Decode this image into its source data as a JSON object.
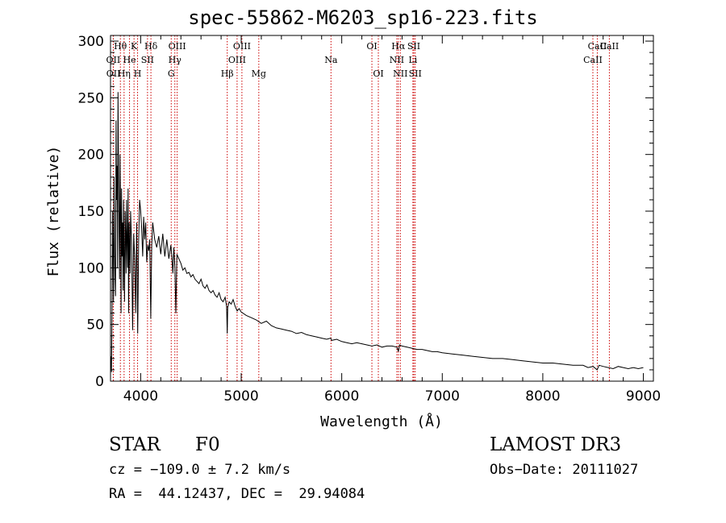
{
  "chart_data": {
    "type": "line",
    "title": "spec-55862-M6203_sp16-223.fits",
    "xlabel": "Wavelength (Å)",
    "ylabel": "Flux (relative)",
    "xlim": [
      3700,
      9100
    ],
    "ylim": [
      0,
      305
    ],
    "xticks": [
      4000,
      5000,
      6000,
      7000,
      8000,
      9000
    ],
    "yticks": [
      0,
      50,
      100,
      150,
      200,
      250,
      300
    ],
    "series": [
      {
        "name": "flux",
        "x": [
          3700,
          3705,
          3710,
          3715,
          3720,
          3725,
          3730,
          3735,
          3740,
          3745,
          3750,
          3755,
          3760,
          3765,
          3770,
          3775,
          3780,
          3785,
          3790,
          3795,
          3800,
          3805,
          3810,
          3815,
          3820,
          3825,
          3830,
          3835,
          3840,
          3845,
          3850,
          3855,
          3860,
          3865,
          3870,
          3875,
          3880,
          3885,
          3890,
          3895,
          3900,
          3910,
          3920,
          3930,
          3940,
          3950,
          3960,
          3970,
          3980,
          3990,
          4000,
          4010,
          4020,
          4030,
          4040,
          4050,
          4060,
          4070,
          4080,
          4090,
          4100,
          4110,
          4120,
          4140,
          4160,
          4180,
          4200,
          4220,
          4240,
          4260,
          4280,
          4300,
          4310,
          4320,
          4330,
          4340,
          4350,
          4360,
          4380,
          4400,
          4420,
          4440,
          4460,
          4480,
          4500,
          4520,
          4540,
          4560,
          4580,
          4600,
          4620,
          4640,
          4660,
          4680,
          4700,
          4720,
          4740,
          4760,
          4780,
          4800,
          4820,
          4840,
          4855,
          4861,
          4866,
          4880,
          4900,
          4920,
          4940,
          4960,
          4980,
          5000,
          5050,
          5100,
          5150,
          5200,
          5250,
          5300,
          5350,
          5400,
          5450,
          5500,
          5550,
          5600,
          5650,
          5700,
          5750,
          5800,
          5850,
          5890,
          5900,
          5950,
          6000,
          6050,
          6100,
          6150,
          6200,
          6250,
          6300,
          6350,
          6400,
          6450,
          6500,
          6550,
          6563,
          6575,
          6600,
          6650,
          6700,
          6750,
          6800,
          6850,
          6900,
          6950,
          7000,
          7100,
          7200,
          7300,
          7400,
          7500,
          7600,
          7700,
          7800,
          7900,
          8000,
          8100,
          8200,
          8300,
          8400,
          8450,
          8500,
          8540,
          8560,
          8600,
          8650,
          8700,
          8750,
          8800,
          8850,
          8900,
          8950,
          9000
        ],
        "values": [
          15,
          22,
          8,
          60,
          150,
          110,
          70,
          180,
          120,
          90,
          75,
          230,
          160,
          190,
          100,
          255,
          180,
          130,
          90,
          200,
          150,
          60,
          170,
          110,
          140,
          80,
          160,
          110,
          70,
          150,
          130,
          95,
          160,
          120,
          100,
          170,
          60,
          140,
          115,
          95,
          150,
          120,
          45,
          130,
          110,
          60,
          140,
          42,
          125,
          160,
          150,
          135,
          110,
          145,
          125,
          140,
          105,
          120,
          115,
          125,
          55,
          120,
          140,
          125,
          118,
          128,
          112,
          130,
          110,
          125,
          108,
          120,
          110,
          95,
          118,
          100,
          60,
          112,
          108,
          104,
          98,
          100,
          95,
          96,
          92,
          94,
          90,
          88,
          86,
          90,
          84,
          82,
          85,
          80,
          78,
          80,
          76,
          74,
          78,
          72,
          70,
          74,
          66,
          42,
          65,
          70,
          68,
          72,
          66,
          62,
          64,
          61,
          58,
          56,
          54,
          51,
          53,
          49,
          47,
          46,
          45,
          44,
          42,
          43,
          41,
          40,
          39,
          38,
          37,
          38,
          36,
          37,
          35,
          34,
          33,
          34,
          33,
          32,
          31,
          32,
          30,
          31,
          31,
          30,
          26,
          32,
          31,
          30,
          29,
          28,
          28,
          27,
          26,
          26,
          25,
          24,
          23,
          22,
          21,
          20,
          20,
          19,
          18,
          17,
          16,
          16,
          15,
          14,
          14,
          12,
          13,
          10,
          14,
          13,
          12,
          11,
          13,
          12,
          11,
          12,
          11,
          12
        ]
      }
    ],
    "line_labels": [
      {
        "name": "Hθ",
        "wavelength": 3798
      },
      {
        "name": "K",
        "wavelength": 3934
      },
      {
        "name": "Hδ",
        "wavelength": 4102
      },
      {
        "name": "OIII",
        "wavelength": 4363
      },
      {
        "name": "OIII",
        "wavelength": 5007
      },
      {
        "name": "OI",
        "wavelength": 6300
      },
      {
        "name": "Hα",
        "wavelength": 6563
      },
      {
        "name": "SII",
        "wavelength": 6717
      },
      {
        "name": "CaII",
        "wavelength": 8542
      },
      {
        "name": "OII",
        "wavelength": 3727
      },
      {
        "name": "He",
        "wavelength": 3889
      },
      {
        "name": "SII",
        "wavelength": 4068
      },
      {
        "name": "Hγ",
        "wavelength": 4340
      },
      {
        "name": "OIII",
        "wavelength": 4959
      },
      {
        "name": "Na",
        "wavelength": 5893
      },
      {
        "name": "NII",
        "wavelength": 6548
      },
      {
        "name": "Li",
        "wavelength": 6708
      },
      {
        "name": "CaII",
        "wavelength": 8498
      },
      {
        "name": "OII",
        "wavelength": 3729
      },
      {
        "name": "Hη",
        "wavelength": 3835
      },
      {
        "name": "H",
        "wavelength": 3969
      },
      {
        "name": "G",
        "wavelength": 4304
      },
      {
        "name": "Hβ",
        "wavelength": 4861
      },
      {
        "name": "Mg",
        "wavelength": 5175
      },
      {
        "name": "OI",
        "wavelength": 6364
      },
      {
        "name": "NII",
        "wavelength": 6583
      },
      {
        "name": "SII",
        "wavelength": 6731
      },
      {
        "name": "CaII",
        "wavelength": 8662
      }
    ]
  },
  "info": {
    "object_class": "STAR",
    "subclass": "F0",
    "survey": "LAMOST DR3",
    "cz": "cz = −109.0 ± 7.2 km/s",
    "obs_date": "Obs−Date: 20111027",
    "coords": "RA =  44.12437, DEC =  29.94084"
  }
}
